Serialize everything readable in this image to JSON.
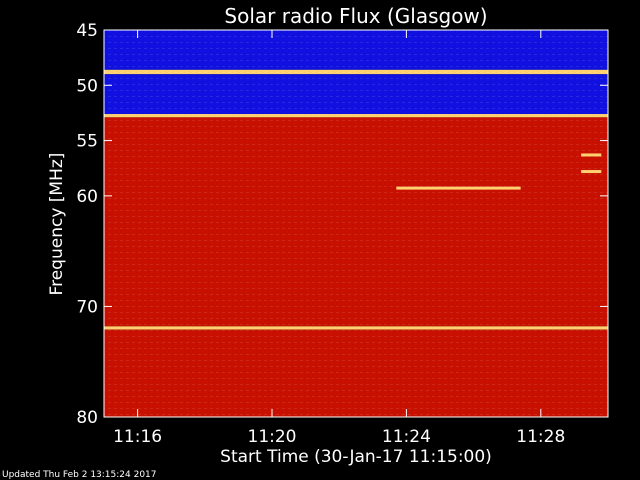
{
  "chart_data": {
    "type": "heatmap",
    "title": "Solar radio Flux (Glasgow)",
    "xlabel": "Start Time (30-Jan-17 11:15:00)",
    "ylabel": "Frequency [MHz]",
    "x_range": [
      "11:15:00",
      "11:30:00"
    ],
    "y_range_mhz": [
      45,
      80
    ],
    "y_reversed": true,
    "x_ticks": [
      "11:16",
      "11:20",
      "11:24",
      "11:28"
    ],
    "x_tick_minutes": [
      1,
      5,
      9,
      13
    ],
    "y_ticks": [
      45,
      50,
      55,
      60,
      70,
      80
    ],
    "colors": {
      "low": "#1010e0",
      "mid": "#c81000",
      "high": "#ffd070"
    },
    "bands": [
      {
        "from_mhz": 45.0,
        "to_mhz": 48.6,
        "level": "low"
      },
      {
        "from_mhz": 48.6,
        "to_mhz": 49.0,
        "level": "high"
      },
      {
        "from_mhz": 49.0,
        "to_mhz": 52.6,
        "level": "low"
      },
      {
        "from_mhz": 52.6,
        "to_mhz": 52.9,
        "level": "high"
      },
      {
        "from_mhz": 52.9,
        "to_mhz": 71.8,
        "level": "mid"
      },
      {
        "from_mhz": 71.8,
        "to_mhz": 72.1,
        "level": "high"
      },
      {
        "from_mhz": 72.1,
        "to_mhz": 80.0,
        "level": "mid"
      }
    ],
    "features": [
      {
        "from_min": 8.7,
        "to_min": 12.4,
        "freq_mhz": 59.3,
        "level": "high"
      },
      {
        "from_min": 14.2,
        "to_min": 14.8,
        "freq_mhz": 56.3,
        "level": "high"
      },
      {
        "from_min": 14.2,
        "to_min": 14.8,
        "freq_mhz": 57.8,
        "level": "high"
      }
    ]
  },
  "footer": {
    "updated": "Updated Thu Feb  2 13:15:24 2017"
  }
}
